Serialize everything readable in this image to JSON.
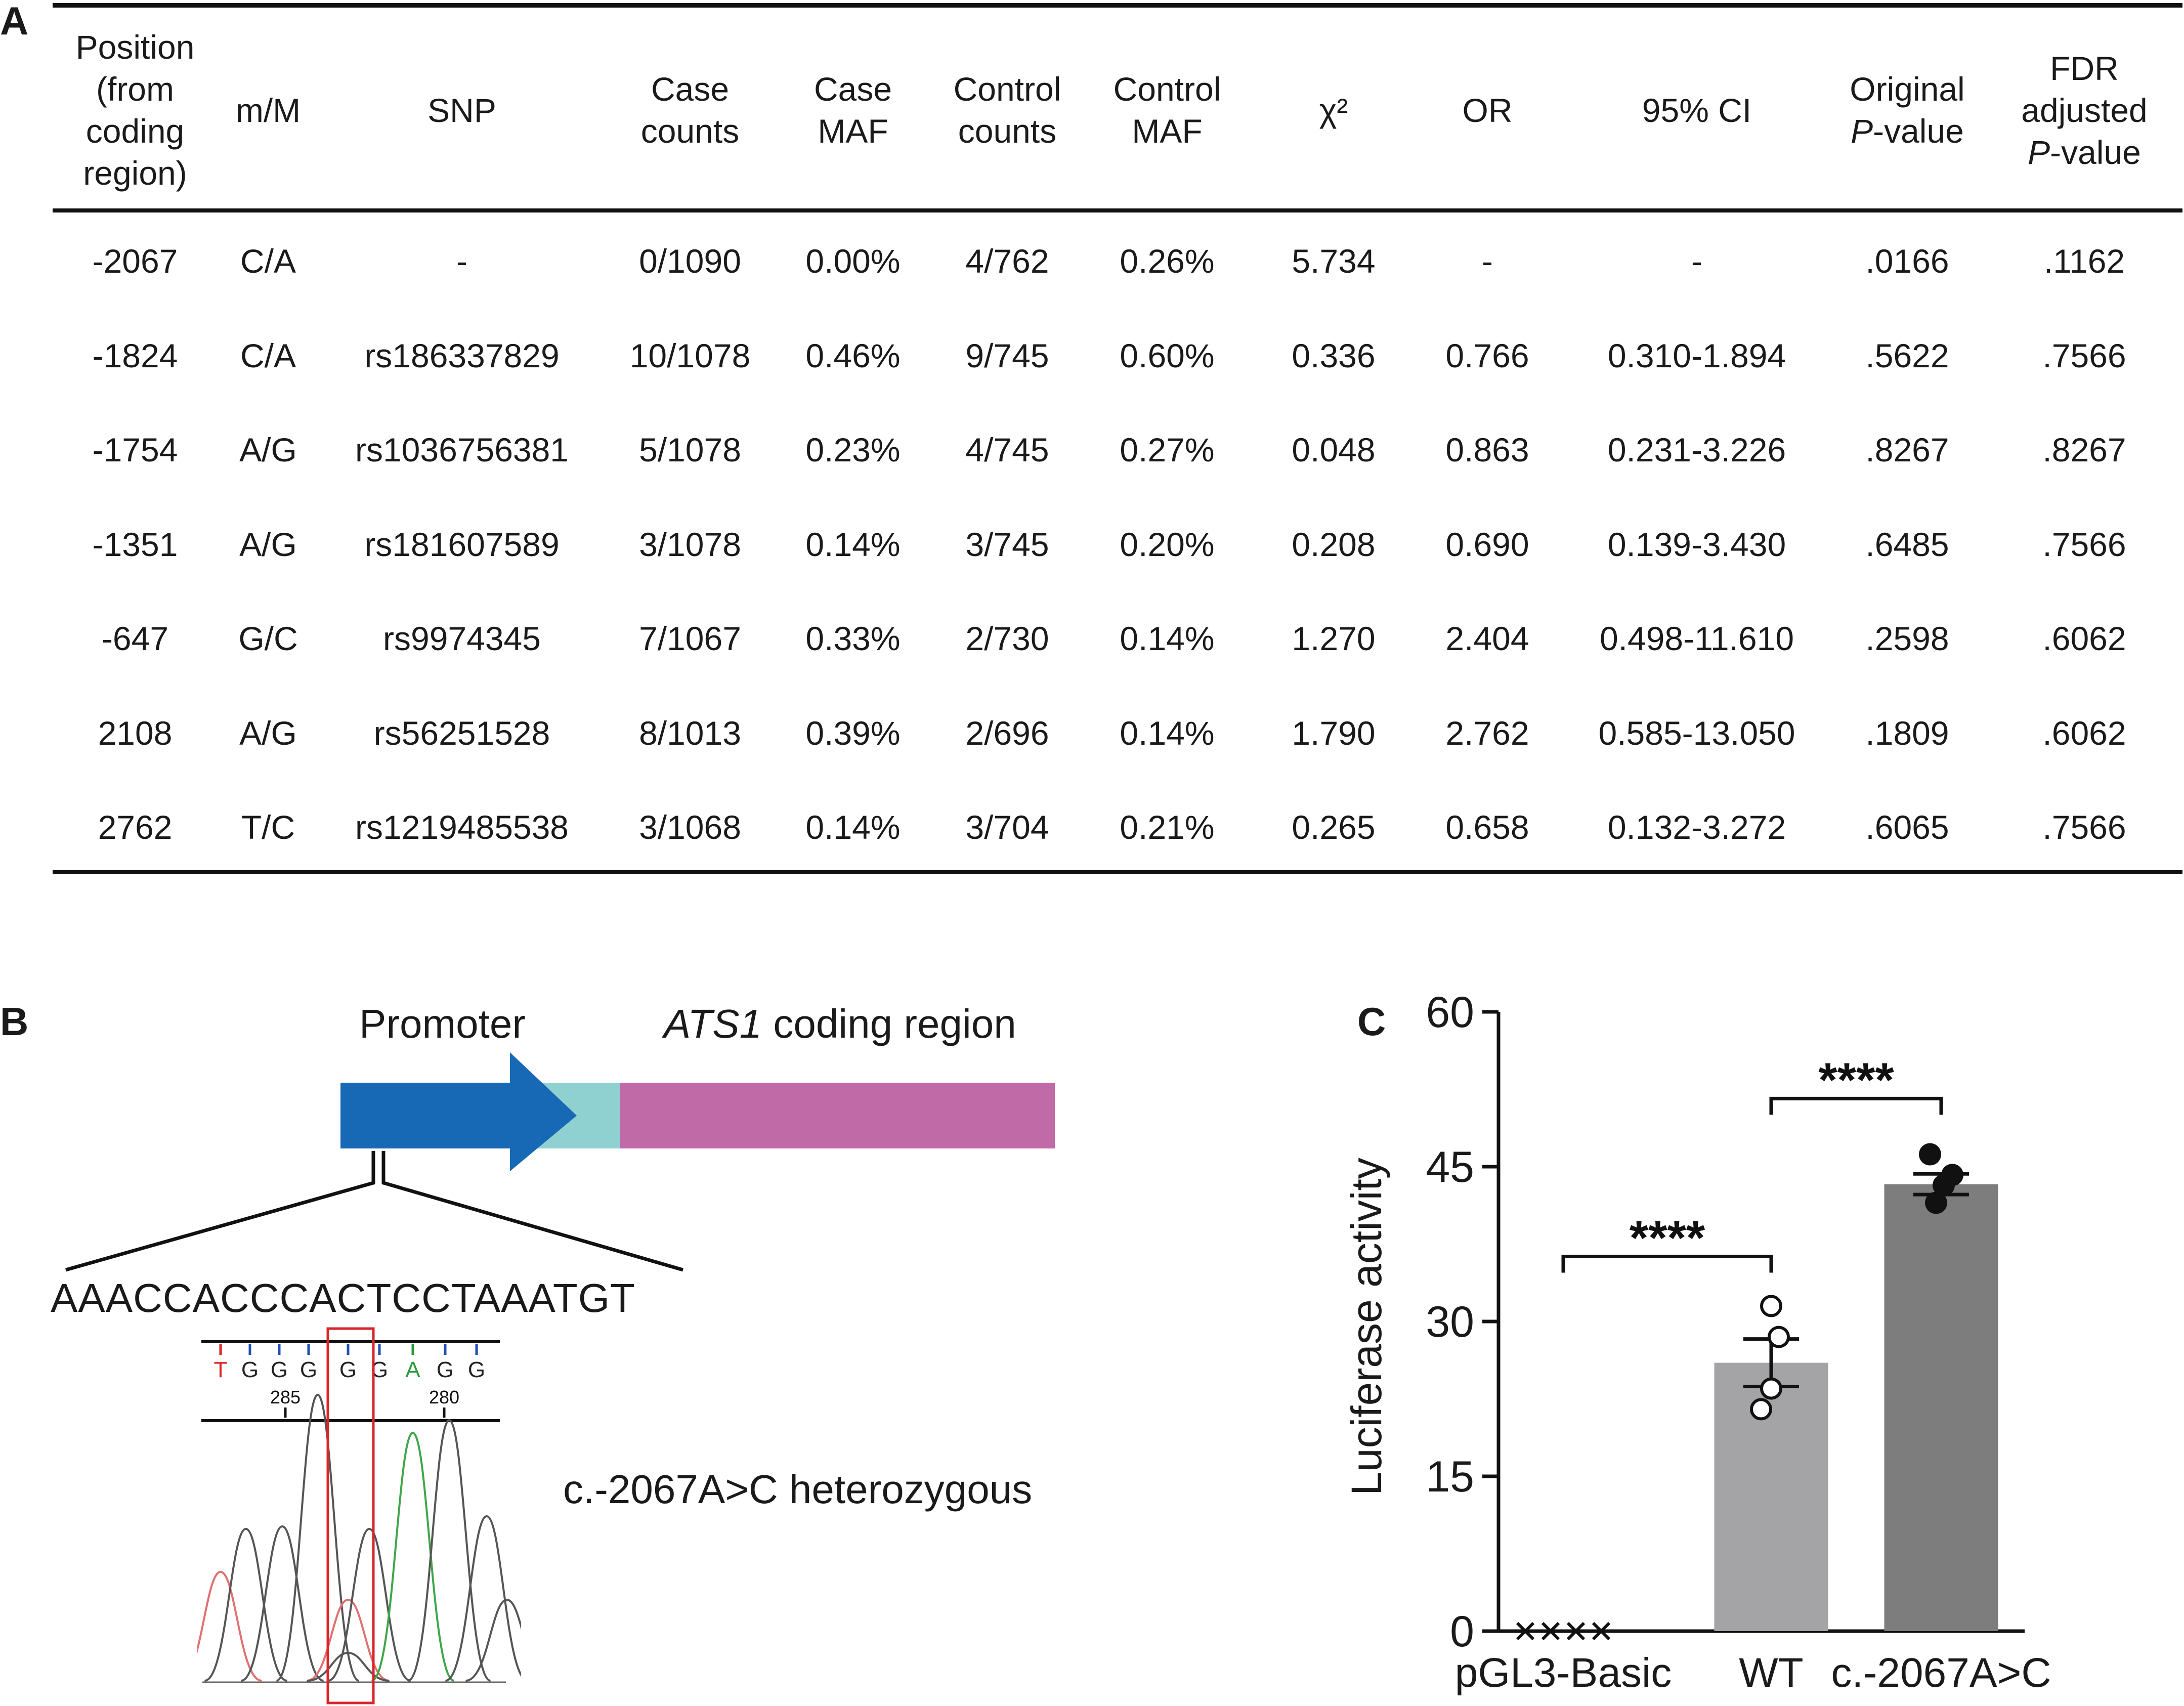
{
  "panels": {
    "a": "A",
    "b": "B",
    "c": "C"
  },
  "table": {
    "headers": [
      [
        "Position",
        "(from",
        "coding",
        "region)"
      ],
      [
        "m/M"
      ],
      [
        "SNP"
      ],
      [
        "Case",
        "counts"
      ],
      [
        "Case",
        "MAF"
      ],
      [
        "Control",
        "counts"
      ],
      [
        "Control",
        "MAF"
      ],
      [
        "χ²"
      ],
      [
        "OR"
      ],
      [
        "95% CI"
      ],
      [
        "Original",
        "P-value"
      ],
      [
        "FDR",
        "adjusted",
        "P-value"
      ]
    ],
    "rows": [
      [
        "-2067",
        "C/A",
        "-",
        "0/1090",
        "0.00%",
        "4/762",
        "0.26%",
        "5.734",
        "-",
        "-",
        ".0166",
        ".1162"
      ],
      [
        "-1824",
        "C/A",
        "rs186337829",
        "10/1078",
        "0.46%",
        "9/745",
        "0.60%",
        "0.336",
        "0.766",
        "0.310-1.894",
        ".5622",
        ".7566"
      ],
      [
        "-1754",
        "A/G",
        "rs1036756381",
        "5/1078",
        "0.23%",
        "4/745",
        "0.27%",
        "0.048",
        "0.863",
        "0.231-3.226",
        ".8267",
        ".8267"
      ],
      [
        "-1351",
        "A/G",
        "rs181607589",
        "3/1078",
        "0.14%",
        "3/745",
        "0.20%",
        "0.208",
        "0.690",
        "0.139-3.430",
        ".6485",
        ".7566"
      ],
      [
        "-647",
        "G/C",
        "rs9974345",
        "7/1067",
        "0.33%",
        "2/730",
        "0.14%",
        "1.270",
        "2.404",
        "0.498-11.610",
        ".2598",
        ".6062"
      ],
      [
        "2108",
        "A/G",
        "rs56251528",
        "8/1013",
        "0.39%",
        "2/696",
        "0.14%",
        "1.790",
        "2.762",
        "0.585-13.050",
        ".1809",
        ".6062"
      ],
      [
        "2762",
        "T/C",
        "rs1219485538",
        "3/1068",
        "0.14%",
        "3/704",
        "0.21%",
        "0.265",
        "0.658",
        "0.132-3.272",
        ".6065",
        ".7566"
      ]
    ]
  },
  "gene_diagram": {
    "promoter_label": "Promoter",
    "gene_name": "ATS1",
    "coding_label": " coding region",
    "sequence": "AAACCACCCACTCCTAAATGT",
    "chromatogram_bases": [
      "T",
      "G",
      "G",
      "G",
      "G",
      "G",
      "A",
      "G",
      "G"
    ],
    "base_colors": {
      "T": "#d9262b",
      "G": "#222222",
      "A": "#2a9a3a"
    },
    "position_labels": [
      "285",
      "280"
    ],
    "variant_label": "c.-2067A>C heterozygous",
    "colors": {
      "promoter": "#1769b5",
      "utr": "#8fd0d0",
      "coding": "#c06aa8",
      "highlight": "#d9262b"
    }
  },
  "chart_data": {
    "type": "bar",
    "title": "",
    "xlabel": "",
    "ylabel": "Luciferase activity",
    "categories": [
      "pGL3-Basic",
      "WT",
      "c.-2067A>C"
    ],
    "values": [
      0,
      26.0,
      43.3
    ],
    "error": [
      0,
      2.3,
      1.0
    ],
    "points": [
      [
        0,
        0,
        0,
        0
      ],
      [
        31.5,
        28.5,
        23.5,
        21.5
      ],
      [
        46.2,
        44.2,
        43.2,
        41.5
      ]
    ],
    "point_styles": [
      "cross",
      "open-circle",
      "filled-circle"
    ],
    "ylim": [
      0,
      60
    ],
    "yticks": [
      "0",
      "15",
      "30",
      "45",
      "60"
    ],
    "significance": [
      {
        "from": 0,
        "to": 1,
        "label": "****"
      },
      {
        "from": 1,
        "to": 2,
        "label": "****"
      }
    ],
    "colors": [
      "#a6a6a6",
      "#a4a4a6",
      "#7d7d7d"
    ]
  }
}
